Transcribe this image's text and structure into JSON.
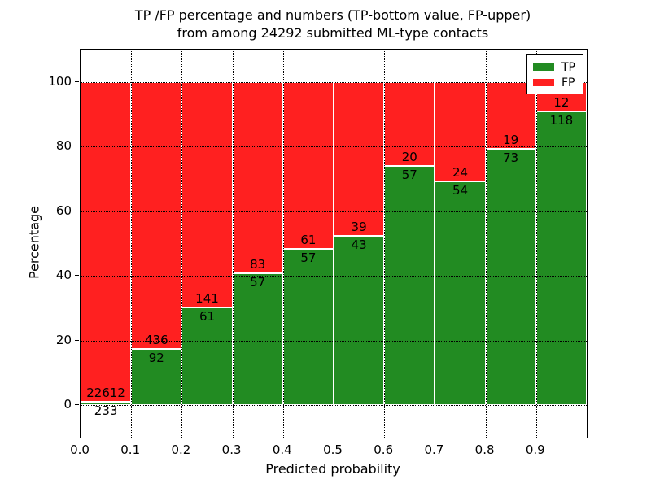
{
  "title": {
    "line1": "TP /FP percentage and numbers (TP-bottom value, FP-upper)",
    "line2": "from among 24292 submitted ML-type contacts"
  },
  "axes": {
    "y_label": "Percentage",
    "x_label": "Predicted probability",
    "y_ticks": [
      0,
      20,
      40,
      60,
      80,
      100
    ],
    "x_ticks": [
      "0.0",
      "0.1",
      "0.2",
      "0.3",
      "0.4",
      "0.5",
      "0.6",
      "0.7",
      "0.8",
      "0.9"
    ],
    "y_range": [
      -10,
      110
    ],
    "x_range": [
      0.0,
      1.0
    ],
    "grid": "dotted"
  },
  "legend": {
    "position": "upper right",
    "entries": [
      {
        "label": "TP",
        "color": "#228B22"
      },
      {
        "label": "FP",
        "color": "#FF2020"
      }
    ]
  },
  "chart_data": {
    "type": "bar",
    "stacked": true,
    "normalized": "each bar totals 100%",
    "title": "TP /FP percentage and numbers (TP-bottom value, FP-upper) from among 24292 submitted ML-type contacts",
    "xlabel": "Predicted probability",
    "ylabel": "Percentage",
    "total_contacts": 24292,
    "bin_starts": [
      0.0,
      0.1,
      0.2,
      0.3,
      0.4,
      0.5,
      0.6,
      0.7,
      0.8,
      0.9
    ],
    "bin_width": 0.1,
    "series": [
      {
        "name": "TP",
        "color": "#228B22",
        "counts": [
          233,
          92,
          61,
          57,
          57,
          43,
          57,
          54,
          73,
          118
        ]
      },
      {
        "name": "FP",
        "color": "#FF2020",
        "counts": [
          22612,
          436,
          141,
          83,
          61,
          39,
          20,
          24,
          19,
          12
        ]
      }
    ],
    "tp_percent_of_bin": [
      1.02,
      17.42,
      30.2,
      40.71,
      48.31,
      52.44,
      74.03,
      69.23,
      79.35,
      90.77
    ],
    "xlim": [
      0.0,
      1.0
    ],
    "ylim": [
      -10,
      110
    ]
  }
}
